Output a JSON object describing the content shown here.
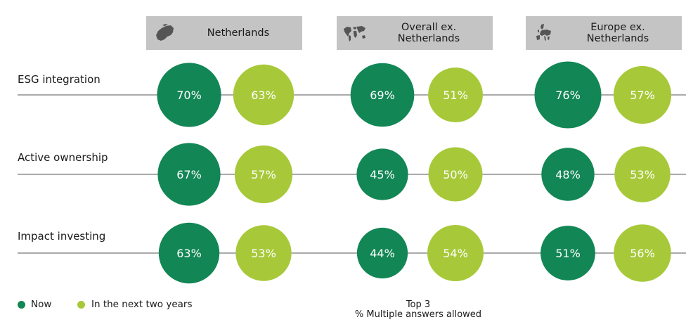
{
  "chart_data": {
    "type": "bubble",
    "groups": [
      "Netherlands",
      "Overall ex.\nNetherlands",
      "Europe ex.\nNetherlands"
    ],
    "categories": [
      "ESG integration",
      "Active ownership",
      "Impact investing"
    ],
    "series": [
      {
        "name": "Now",
        "color": "#128655",
        "values": [
          [
            70,
            69,
            76
          ],
          [
            67,
            45,
            48
          ],
          [
            63,
            44,
            51
          ]
        ]
      },
      {
        "name": "In the next two years",
        "color": "#a7c939",
        "values": [
          [
            63,
            51,
            57
          ],
          [
            57,
            50,
            53
          ],
          [
            53,
            54,
            56
          ]
        ]
      }
    ],
    "value_suffix": "%",
    "note": "Top 3\n% Multiple answers allowed"
  },
  "header_icons": [
    "netherlands-map-icon",
    "world-map-icon",
    "europe-map-icon"
  ],
  "colors": {
    "header_bg": "#c4c4c4",
    "line": "#555555",
    "text_light": "#ffffff"
  }
}
